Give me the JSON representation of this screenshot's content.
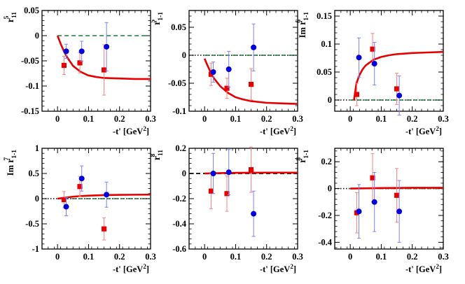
{
  "figure": {
    "x_axis_title": "-t' [GeV",
    "x_axis_sup": "2",
    "x_axis_close": "]"
  },
  "colors": {
    "curve": "#e60000",
    "zero_dashed": "#1a7a3a",
    "zero_dotted": "#000000",
    "series_a": "#e60000",
    "series_b": "#0000dd",
    "errbar_a": "#ff8080",
    "errbar_b": "#7f7fff"
  },
  "chart_data": [
    {
      "type": "scatter",
      "ylabel": {
        "prefix": "",
        "base": "r",
        "sup": "5",
        "sub": "11"
      },
      "xlim": [
        -0.05,
        0.3
      ],
      "ylim": [
        -0.15,
        0.05
      ],
      "xticks": [
        "0",
        "0.1",
        "0.2",
        "0.3"
      ],
      "xtick_values": [
        0,
        0.1,
        0.2,
        0.3
      ],
      "yticks": [
        "-0.15",
        "-0.1",
        "-0.05",
        "0",
        "0.05"
      ],
      "ytick_values": [
        -0.15,
        -0.1,
        -0.05,
        0,
        0.05
      ],
      "zero_line": "dashed-green",
      "series": [
        {
          "points": [
            [
              0.021,
              -0.059,
              0.018
            ],
            [
              0.072,
              -0.054,
              0.02
            ],
            [
              0.15,
              -0.068,
              0.05
            ]
          ]
        },
        {
          "points": [
            [
              0.028,
              -0.031,
              0.014
            ],
            [
              0.078,
              -0.031,
              0.02
            ],
            [
              0.158,
              -0.022,
              0.048
            ]
          ]
        }
      ],
      "curve": {
        "x": [
          0.0,
          0.01,
          0.02,
          0.03,
          0.05,
          0.075,
          0.1,
          0.125,
          0.15,
          0.2,
          0.25,
          0.3
        ],
        "y": [
          0.0,
          -0.016,
          -0.03,
          -0.042,
          -0.06,
          -0.072,
          -0.079,
          -0.082,
          -0.084,
          -0.085,
          -0.086,
          -0.086
        ]
      }
    },
    {
      "type": "scatter",
      "ylabel": {
        "prefix": "",
        "base": "r",
        "sup": "5",
        "sub": "1-1"
      },
      "xlim": [
        -0.05,
        0.3
      ],
      "ylim": [
        -0.1,
        0.08
      ],
      "xticks": [
        "0",
        "0.1",
        "0.2",
        "0.3"
      ],
      "xtick_values": [
        0,
        0.1,
        0.2,
        0.3
      ],
      "yticks": [
        "-0.1",
        "-0.05",
        "0",
        "0.05"
      ],
      "ytick_values": [
        -0.1,
        -0.05,
        0,
        0.05
      ],
      "zero_line": "dotted-and-dashed",
      "series": [
        {
          "points": [
            [
              0.021,
              -0.034,
              0.02
            ],
            [
              0.072,
              -0.059,
              0.018
            ],
            [
              0.15,
              -0.052,
              0.028
            ]
          ]
        },
        {
          "points": [
            [
              0.028,
              -0.03,
              0.018
            ],
            [
              0.078,
              -0.025,
              0.032
            ],
            [
              0.158,
              0.014,
              0.042
            ]
          ]
        }
      ],
      "curve": {
        "x": [
          0.0,
          0.01,
          0.02,
          0.03,
          0.05,
          0.075,
          0.1,
          0.125,
          0.15,
          0.2,
          0.25,
          0.3
        ],
        "y": [
          -0.006,
          -0.019,
          -0.031,
          -0.041,
          -0.055,
          -0.067,
          -0.075,
          -0.079,
          -0.082,
          -0.085,
          -0.086,
          -0.087
        ]
      }
    },
    {
      "type": "scatter",
      "ylabel": {
        "prefix": "Im ",
        "base": "r",
        "sup": "6",
        "sub": "1-1"
      },
      "xlim": [
        -0.05,
        0.3
      ],
      "ylim": [
        -0.02,
        0.16
      ],
      "xticks": [
        "0",
        "0.1",
        "0.2",
        "0.3"
      ],
      "xtick_values": [
        0,
        0.1,
        0.2,
        0.3
      ],
      "yticks": [
        "0",
        "0.05",
        "0.1",
        "0.15"
      ],
      "ytick_values": [
        0,
        0.05,
        0.1,
        0.15
      ],
      "zero_line": "dotted-and-dashed",
      "series": [
        {
          "points": [
            [
              0.021,
              0.01,
              0.02
            ],
            [
              0.072,
              0.091,
              0.028
            ],
            [
              0.15,
              0.02,
              0.028
            ]
          ]
        },
        {
          "points": [
            [
              0.028,
              0.076,
              0.035
            ],
            [
              0.078,
              0.065,
              0.038
            ],
            [
              0.158,
              0.008,
              0.035
            ]
          ]
        }
      ],
      "curve": {
        "x": [
          0.012,
          0.02,
          0.03,
          0.04,
          0.05,
          0.075,
          0.1,
          0.125,
          0.15,
          0.2,
          0.25,
          0.3
        ],
        "y": [
          0.0,
          0.03,
          0.045,
          0.055,
          0.062,
          0.072,
          0.077,
          0.08,
          0.082,
          0.084,
          0.085,
          0.086
        ]
      }
    },
    {
      "type": "scatter",
      "ylabel": {
        "prefix": "Im ",
        "base": "r",
        "sup": "7",
        "sub": "1-1"
      },
      "xlim": [
        -0.05,
        0.3
      ],
      "ylim": [
        -1.0,
        1.0
      ],
      "xticks": [
        "0",
        "0.1",
        "0.2",
        "0.3"
      ],
      "xtick_values": [
        0,
        0.1,
        0.2,
        0.3
      ],
      "yticks": [
        "-1",
        "-0.5",
        "0",
        "0.5",
        "1"
      ],
      "ytick_values": [
        -1,
        -0.5,
        0,
        0.5,
        1
      ],
      "zero_line": "dotted-and-dashed",
      "series": [
        {
          "points": [
            [
              0.021,
              -0.02,
              0.16
            ],
            [
              0.072,
              0.24,
              0.2
            ],
            [
              0.15,
              -0.6,
              0.22
            ]
          ]
        },
        {
          "points": [
            [
              0.028,
              -0.16,
              0.18
            ],
            [
              0.078,
              0.4,
              0.25
            ],
            [
              0.158,
              0.08,
              0.25
            ]
          ]
        }
      ],
      "curve": {
        "x": [
          0.0,
          0.05,
          0.1,
          0.15,
          0.2,
          0.25,
          0.3
        ],
        "y": [
          0.0,
          0.04,
          0.06,
          0.07,
          0.075,
          0.078,
          0.08
        ]
      }
    },
    {
      "type": "scatter",
      "ylabel": {
        "prefix": "",
        "base": "r",
        "sup": "8",
        "sub": "11"
      },
      "xlim": [
        -0.05,
        0.3
      ],
      "ylim": [
        -0.6,
        0.2
      ],
      "xticks": [
        "0",
        "0.1",
        "0.2",
        "0.3"
      ],
      "xtick_values": [
        0,
        0.1,
        0.2,
        0.3
      ],
      "yticks": [
        "-0.6",
        "-0.4",
        "-0.2",
        "0",
        "0.2"
      ],
      "ytick_values": [
        -0.6,
        -0.4,
        -0.2,
        0,
        0.2
      ],
      "zero_line": "dashed-black",
      "series": [
        {
          "points": [
            [
              0.021,
              -0.14,
              0.14
            ],
            [
              0.072,
              -0.16,
              0.14
            ],
            [
              0.15,
              0.03,
              0.18
            ]
          ]
        },
        {
          "points": [
            [
              0.028,
              0.0,
              0.16
            ],
            [
              0.078,
              0.01,
              0.18
            ],
            [
              0.158,
              -0.32,
              0.18
            ]
          ]
        }
      ],
      "curve": {
        "x": [
          0.0,
          0.05,
          0.1,
          0.15,
          0.2,
          0.25,
          0.3
        ],
        "y": [
          0.0,
          0.003,
          0.005,
          0.006,
          0.007,
          0.007,
          0.007
        ]
      }
    },
    {
      "type": "scatter",
      "ylabel": {
        "prefix": "",
        "base": "r",
        "sup": "8",
        "sub": "1-1"
      },
      "xlim": [
        -0.05,
        0.3
      ],
      "ylim": [
        -0.45,
        0.3
      ],
      "xticks": [
        "0",
        "0.1",
        "0.2",
        "0.3"
      ],
      "xtick_values": [
        0,
        0.1,
        0.2,
        0.3
      ],
      "yticks": [
        "-0.4",
        "-0.2",
        "0",
        "0.2"
      ],
      "ytick_values": [
        -0.4,
        -0.2,
        0,
        0.2
      ],
      "zero_line": "dotted-and-dashed",
      "series": [
        {
          "points": [
            [
              0.021,
              -0.18,
              0.15
            ],
            [
              0.072,
              0.08,
              0.18
            ],
            [
              0.15,
              -0.05,
              0.2
            ]
          ]
        },
        {
          "points": [
            [
              0.028,
              -0.17,
              0.2
            ],
            [
              0.078,
              -0.1,
              0.22
            ],
            [
              0.158,
              -0.17,
              0.23
            ]
          ]
        }
      ],
      "curve": {
        "x": [
          0.0,
          0.05,
          0.1,
          0.15,
          0.2,
          0.25,
          0.3
        ],
        "y": [
          0.0,
          0.002,
          0.004,
          0.005,
          0.006,
          0.006,
          0.006
        ]
      }
    }
  ]
}
